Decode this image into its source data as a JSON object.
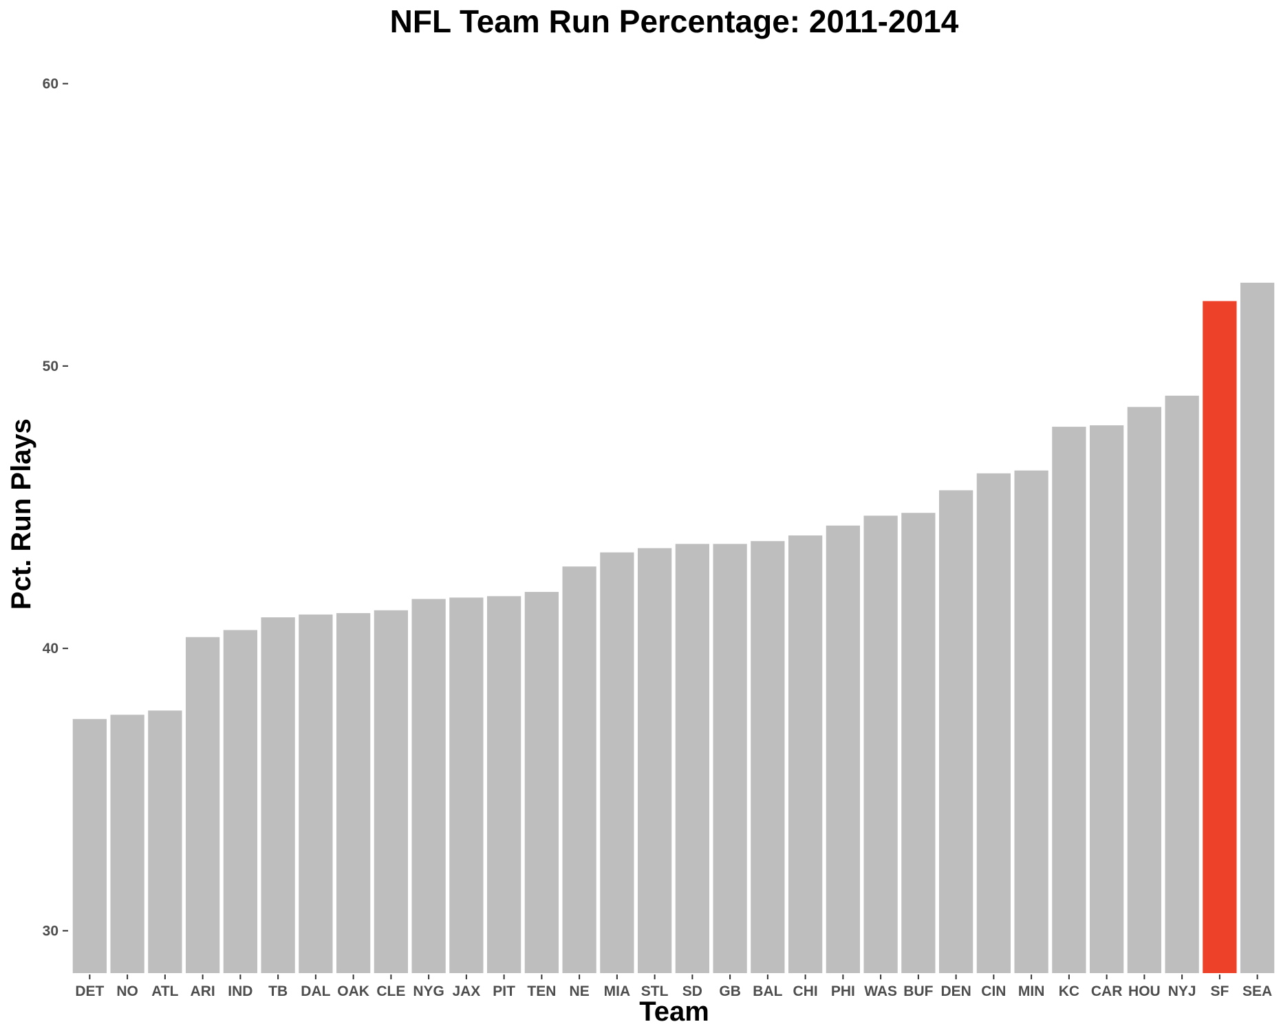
{
  "chart_data": {
    "type": "bar",
    "title": "NFL Team Run Percentage: 2011-2014",
    "xlabel": "Team",
    "ylabel": "Pct. Run Plays",
    "ylim": [
      28.5,
      61.5
    ],
    "yticks": [
      30,
      40,
      50,
      60
    ],
    "grid": false,
    "legend": "none",
    "categories": [
      "DET",
      "NO",
      "ATL",
      "ARI",
      "IND",
      "TB",
      "DAL",
      "OAK",
      "CLE",
      "NYG",
      "JAX",
      "PIT",
      "TEN",
      "NE",
      "MIA",
      "STL",
      "SD",
      "GB",
      "BAL",
      "CHI",
      "PHI",
      "WAS",
      "BUF",
      "DEN",
      "CIN",
      "MIN",
      "KC",
      "CAR",
      "HOU",
      "NYJ",
      "SF",
      "SEA"
    ],
    "values": [
      37.5,
      37.65,
      37.8,
      40.4,
      40.65,
      41.1,
      41.2,
      41.25,
      41.35,
      41.75,
      41.8,
      41.85,
      42.0,
      42.9,
      43.4,
      43.55,
      43.7,
      43.7,
      43.8,
      44.0,
      44.35,
      44.7,
      44.8,
      45.6,
      46.2,
      46.3,
      47.85,
      47.9,
      48.55,
      48.95,
      52.3,
      52.95
    ],
    "highlight_category": "SF",
    "colors": {
      "bar": "#bebebe",
      "highlight": "#ee4129",
      "background": "#ffffff"
    }
  }
}
